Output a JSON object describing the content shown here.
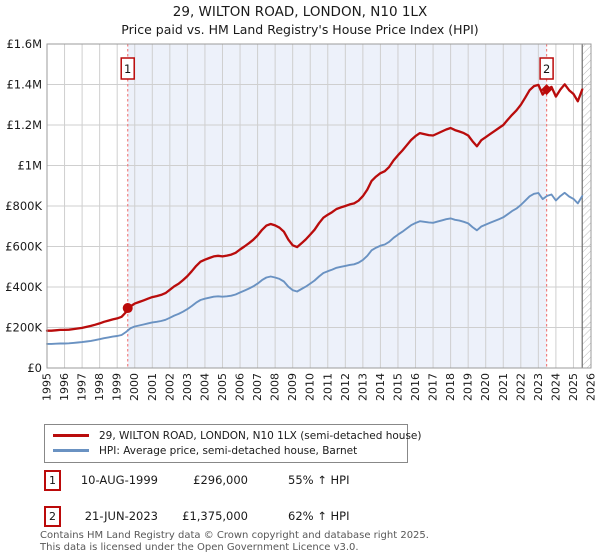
{
  "page": {
    "title": "29, WILTON ROAD, LONDON, N10 1LX",
    "subtitle": "Price paid vs. HM Land Registry's House Price Index (HPI)"
  },
  "chart_data": {
    "type": "line",
    "title": "29, WILTON ROAD, LONDON, N10 1LX",
    "subtitle": "Price paid vs. HM Land Registry's House Price Index (HPI)",
    "x_axis": {
      "tick_labels": [
        "1995",
        "1996",
        "1997",
        "1998",
        "1999",
        "2000",
        "2001",
        "2002",
        "2003",
        "2004",
        "2005",
        "2006",
        "2007",
        "2008",
        "2009",
        "2010",
        "2011",
        "2012",
        "2013",
        "2014",
        "2015",
        "2016",
        "2017",
        "2018",
        "2019",
        "2020",
        "2021",
        "2022",
        "2023",
        "2024",
        "2025",
        "2026"
      ],
      "range_years": [
        1995,
        2026
      ]
    },
    "y_axis": {
      "tick_labels": [
        "£0",
        "£200K",
        "£400K",
        "£600K",
        "£800K",
        "£1M",
        "£1.2M",
        "£1.4M",
        "£1.6M"
      ],
      "range_gbp": [
        0,
        1600000
      ],
      "tick_step_gbp": 200000
    },
    "grid": true,
    "unit": "GBP thousands",
    "x_start_year": 1995.0,
    "x_step_years": 0.25,
    "series": [
      {
        "name": "29, WILTON ROAD, LONDON, N10 1LX (semi-detached house)",
        "color": "#b90c0c",
        "values_k": [
          184,
          184,
          186,
          188,
          188,
          189,
          192,
          195,
          198,
          203,
          208,
          214,
          220,
          228,
          234,
          240,
          245,
          253,
          276,
          304,
          318,
          326,
          334,
          342,
          350,
          355,
          361,
          370,
          386,
          403,
          416,
          434,
          454,
          478,
          504,
          525,
          535,
          543,
          551,
          554,
          551,
          555,
          560,
          569,
          585,
          600,
          616,
          633,
          655,
          682,
          703,
          711,
          704,
          693,
          673,
          634,
          606,
          597,
          616,
          635,
          659,
          683,
          715,
          742,
          757,
          770,
          785,
          793,
          800,
          808,
          813,
          826,
          849,
          881,
          924,
          945,
          962,
          972,
          993,
          1025,
          1051,
          1074,
          1100,
          1126,
          1145,
          1160,
          1155,
          1150,
          1148,
          1158,
          1168,
          1178,
          1185,
          1175,
          1168,
          1160,
          1148,
          1120,
          1095,
          1125,
          1140,
          1155,
          1170,
          1185,
          1200,
          1225,
          1250,
          1272,
          1300,
          1335,
          1372,
          1392,
          1398,
          1350,
          1377,
          1388,
          1340,
          1375,
          1401,
          1372,
          1353,
          1317,
          1375
        ]
      },
      {
        "name": "HPI: Average price, semi-detached house, Barnet",
        "color": "#6a92c2",
        "values_k": [
          119,
          119,
          120,
          121,
          121,
          122,
          124,
          126,
          128,
          131,
          134,
          138,
          142,
          147,
          151,
          155,
          158,
          163,
          178,
          196,
          205,
          210,
          215,
          220,
          225,
          228,
          232,
          238,
          248,
          259,
          267,
          278,
          291,
          306,
          323,
          336,
          342,
          347,
          352,
          354,
          352,
          354,
          357,
          363,
          373,
          382,
          392,
          403,
          417,
          434,
          447,
          452,
          447,
          440,
          427,
          402,
          384,
          378,
          390,
          402,
          417,
          432,
          452,
          469,
          478,
          486,
          495,
          500,
          504,
          509,
          512,
          520,
          534,
          554,
          581,
          594,
          604,
          610,
          623,
          643,
          659,
          673,
          689,
          705,
          716,
          725,
          722,
          719,
          717,
          723,
          729,
          735,
          739,
          732,
          728,
          722,
          714,
          696,
          680,
          699,
          708,
          717,
          726,
          735,
          744,
          759,
          775,
          787,
          805,
          826,
          848,
          860,
          864,
          834,
          850,
          857,
          827,
          849,
          865,
          847,
          835,
          813,
          849
        ]
      }
    ],
    "sale_markers": [
      {
        "label": "1",
        "year": 1999.6,
        "value_k": 296,
        "shape": "circle"
      },
      {
        "label": "2",
        "year": 2023.47,
        "value_k": 1375,
        "shape": "diamond"
      }
    ],
    "shaded_span_years": [
      1999.6,
      2023.47
    ],
    "future_hatch_span_years": [
      2025.5,
      2026
    ],
    "colors": {
      "band": "#edf1fa",
      "grid": "#cfcfcf",
      "border": "#9b9b9b",
      "dashed_line": "#f08080",
      "marker_red": "#bb0a0a",
      "hatch_line": "#b9b9b9",
      "hatch_edge": "#6e6e6e"
    }
  },
  "sales_table": {
    "rows": [
      {
        "num": "1",
        "date": "10-AUG-1999",
        "price": "£296,000",
        "vs_hpi": "55% ↑ HPI"
      },
      {
        "num": "2",
        "date": "21-JUN-2023",
        "price": "£1,375,000",
        "vs_hpi": "62% ↑ HPI"
      }
    ]
  },
  "footer": {
    "line1": "Contains HM Land Registry data © Crown copyright and database right 2025.",
    "line2": "This data is licensed under the Open Government Licence v3.0."
  }
}
